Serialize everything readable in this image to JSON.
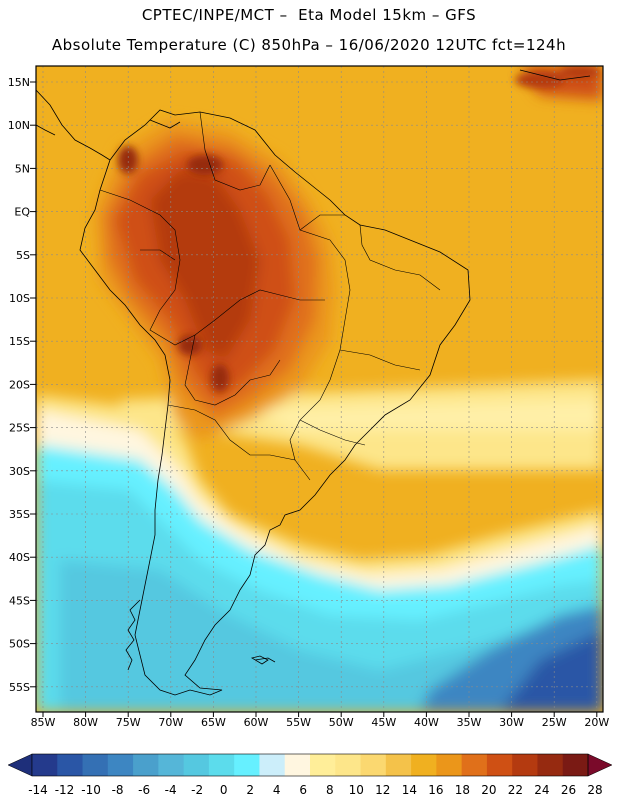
{
  "header": {
    "line1": "CPTEC/INPE/MCT –  Eta Model 15km – GFS",
    "line2": "Absolute Temperature (C) 850hPa – 16/06/2020 12UTC fct=124h"
  },
  "axes": {
    "lat_labels": [
      "15N",
      "10N",
      "5N",
      "EQ",
      "5S",
      "10S",
      "15S",
      "20S",
      "25S",
      "30S",
      "35S",
      "40S",
      "45S",
      "50S",
      "55S"
    ],
    "lon_labels": [
      "85W",
      "80W",
      "75W",
      "70W",
      "65W",
      "60W",
      "55W",
      "50W",
      "45W",
      "40W",
      "35W",
      "30W",
      "25W",
      "20W"
    ]
  },
  "colorbar": {
    "labels": [
      "-14",
      "-12",
      "-10",
      "-8",
      "-6",
      "-4",
      "-2",
      "0",
      "2",
      "4",
      "6",
      "8",
      "10",
      "12",
      "14",
      "16",
      "18",
      "20",
      "22",
      "24",
      "26",
      "28"
    ],
    "colors": [
      "#243a8c",
      "#2a56a6",
      "#3470b4",
      "#3d86c2",
      "#4aa0cc",
      "#55b6d8",
      "#55c8e0",
      "#5cdcec",
      "#66f0ff",
      "#cceefa",
      "#fff6e0",
      "#ffee99",
      "#fde68a",
      "#fbd870",
      "#f4c24a",
      "#f0b020",
      "#eb961a",
      "#e0701a",
      "#cf5014",
      "#b43a10",
      "#962a10",
      "#7a1a14"
    ],
    "low_end_color": "#1e2f7a",
    "high_end_color": "#7a0a2a"
  }
}
